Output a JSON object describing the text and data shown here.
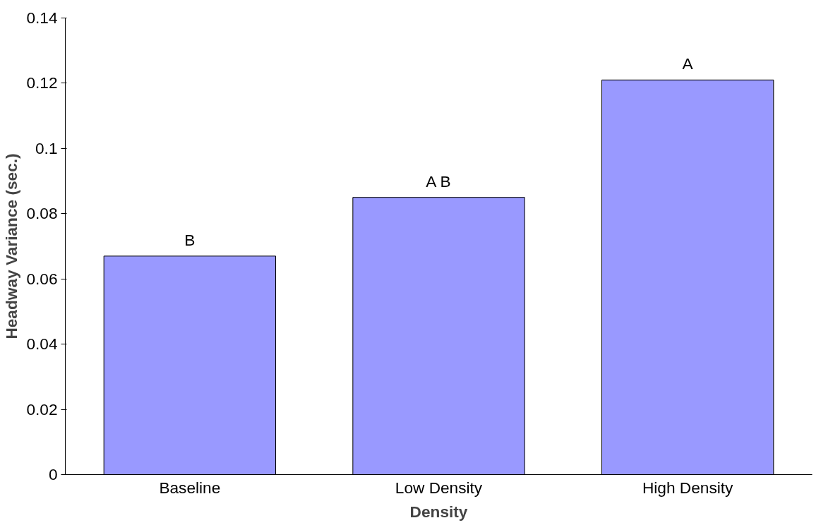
{
  "chart_data": {
    "type": "bar",
    "xlabel": "Density",
    "ylabel": "Headway Variance (sec.)",
    "categories": [
      "Baseline",
      "Low Density",
      "High Density"
    ],
    "values": [
      0.067,
      0.085,
      0.121
    ],
    "color": "#9999ff",
    "ylim": [
      0,
      0.14
    ],
    "yticks": [
      0,
      0.02,
      0.04,
      0.06,
      0.08,
      0.1,
      0.12,
      0.14
    ],
    "grid": false,
    "annotations": [
      {
        "text": "B",
        "x": "Baseline",
        "y": 0.067
      },
      {
        "text": "A B",
        "x": "Low Density",
        "y": 0.085
      },
      {
        "text": "A",
        "x": "High Density",
        "y": 0.121
      }
    ]
  }
}
